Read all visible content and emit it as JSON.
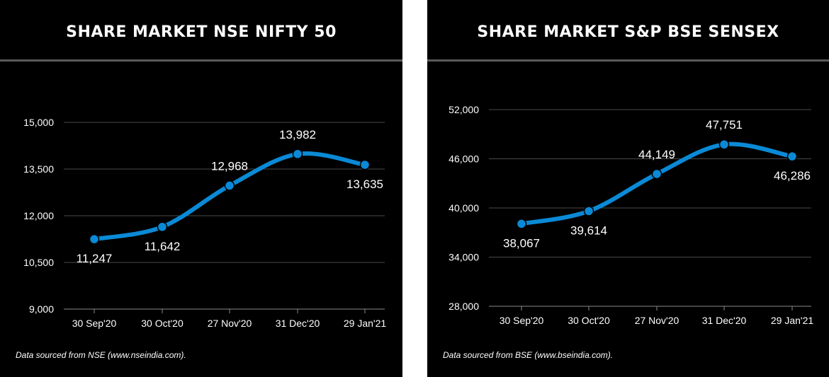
{
  "chart_data": [
    {
      "type": "line",
      "title": "SHARE MARKET NSE NIFTY 50",
      "categories": [
        "30 Sep'20",
        "30 Oct'20",
        "27 Nov'20",
        "31 Dec'20",
        "29 Jan'21"
      ],
      "values": [
        11247,
        11642,
        12968,
        13982,
        13635
      ],
      "value_labels": [
        "11,247",
        "11,642",
        "12,968",
        "13,982",
        "13,635"
      ],
      "label_positions": [
        "below",
        "below",
        "above",
        "above",
        "below"
      ],
      "ylim": [
        9000,
        15000
      ],
      "y_ticks": [
        9000,
        10500,
        12000,
        13500,
        15000
      ],
      "y_tick_labels": [
        "9,000",
        "10,500",
        "12,000",
        "13,500",
        "15,000"
      ],
      "grid": true,
      "line_color": "#0a8ad6",
      "source": "Data sourced from NSE (www.nseindia.com)."
    },
    {
      "type": "line",
      "title": "SHARE MARKET S&P BSE SENSEX",
      "categories": [
        "30 Sep'20",
        "30 Oct'20",
        "27 Nov'20",
        "31 Dec'20",
        "29 Jan'21"
      ],
      "values": [
        38067,
        39614,
        44149,
        47751,
        46286
      ],
      "value_labels": [
        "38,067",
        "39,614",
        "44,149",
        "47,751",
        "46,286"
      ],
      "label_positions": [
        "below",
        "below",
        "above",
        "above",
        "below"
      ],
      "ylim": [
        28000,
        52000
      ],
      "y_ticks": [
        28000,
        34000,
        40000,
        46000,
        52000
      ],
      "y_tick_labels": [
        "28,000",
        "34,000",
        "40,000",
        "46,000",
        "52,000"
      ],
      "grid": true,
      "line_color": "#0a8ad6",
      "source": "Data sourced from BSE (www.bseindia.com)."
    }
  ]
}
